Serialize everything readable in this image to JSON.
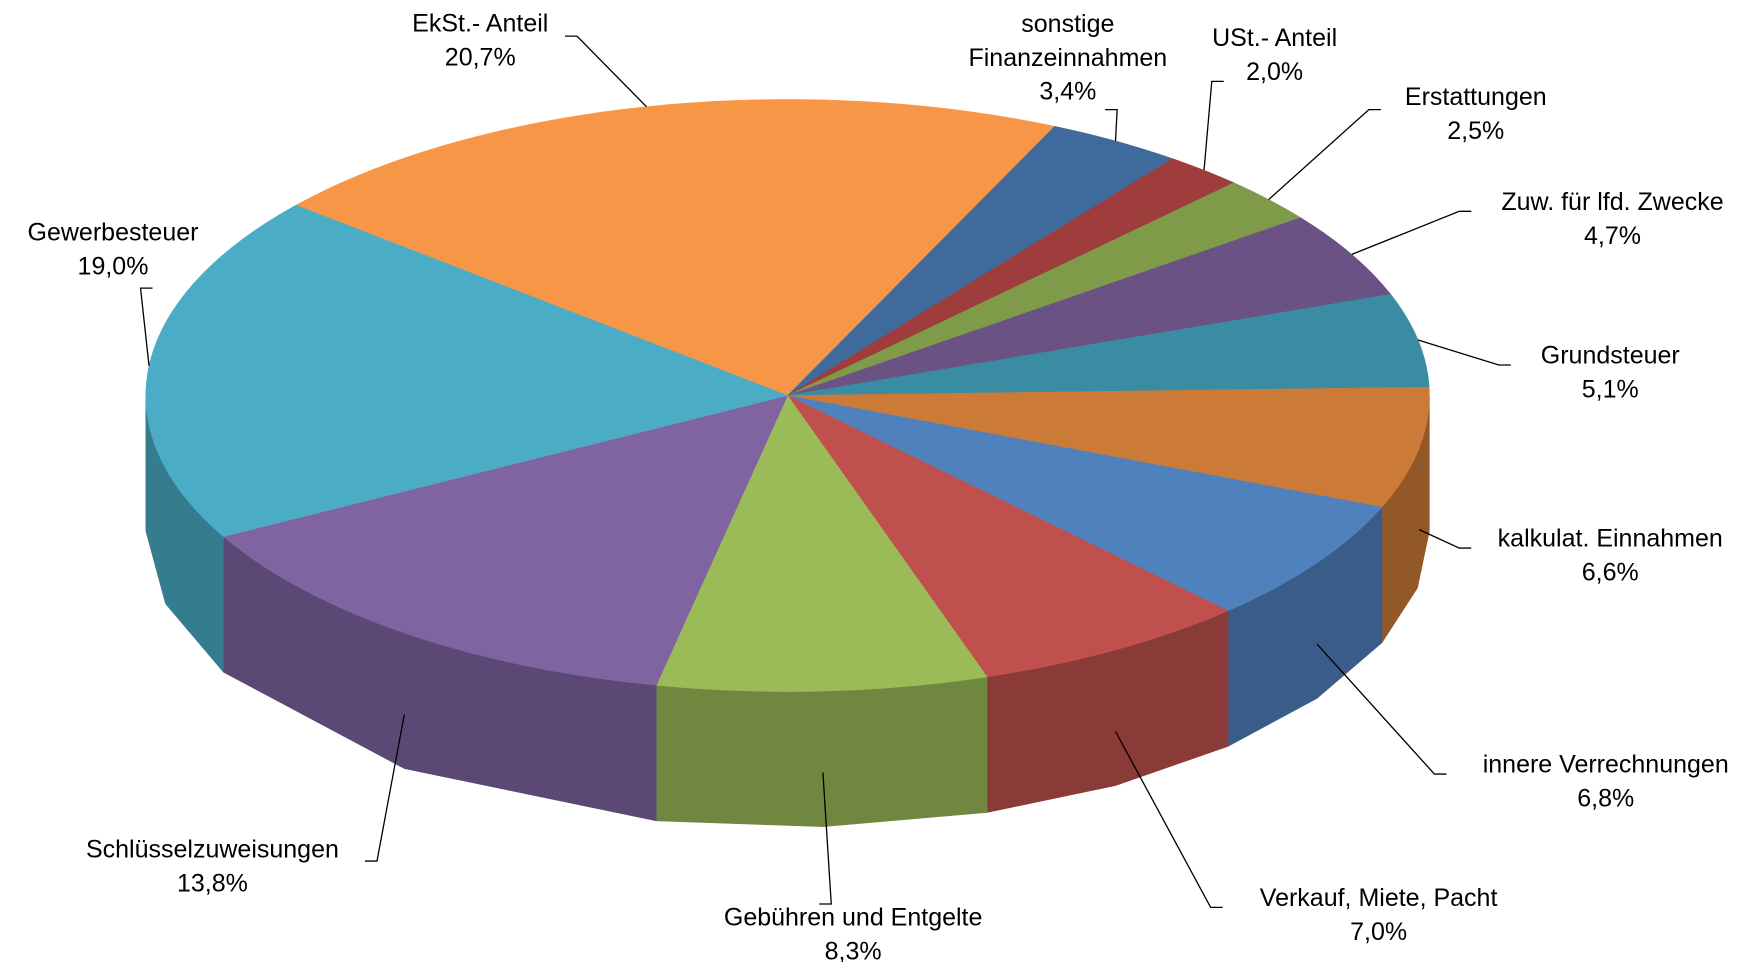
{
  "chart_data": {
    "type": "pie3d",
    "categories": [
      "EkSt.- Anteil",
      "sonstige Finanzeinnahmen",
      "USt.- Anteil",
      "Erstattungen",
      "Zuw. für lfd. Zwecke",
      "Grundsteuer",
      "kalkulat. Einnahmen",
      "innere Verrechnungen",
      "Verkauf, Miete, Pacht",
      "Gebühren und Entgelte",
      "Schlüsselzuweisungen",
      "Gewerbesteuer"
    ],
    "values": [
      20.7,
      3.4,
      2.0,
      2.5,
      4.7,
      5.1,
      6.6,
      6.8,
      7.0,
      8.3,
      13.8,
      19.0
    ],
    "value_labels": [
      "20,7%",
      "3,4%",
      "2,0%",
      "2,5%",
      "4,7%",
      "5,1%",
      "6,6%",
      "6,8%",
      "7,0%",
      "8,3%",
      "13,8%",
      "19,0%"
    ],
    "colors": [
      "#f79646",
      "#3f6a9c",
      "#9e3d3b",
      "#7f9a48",
      "#6b5284",
      "#3a8ca3",
      "#cc7a38",
      "#4f81bd",
      "#c0504d",
      "#9bbb59",
      "#8064a2",
      "#4bacc6"
    ]
  }
}
